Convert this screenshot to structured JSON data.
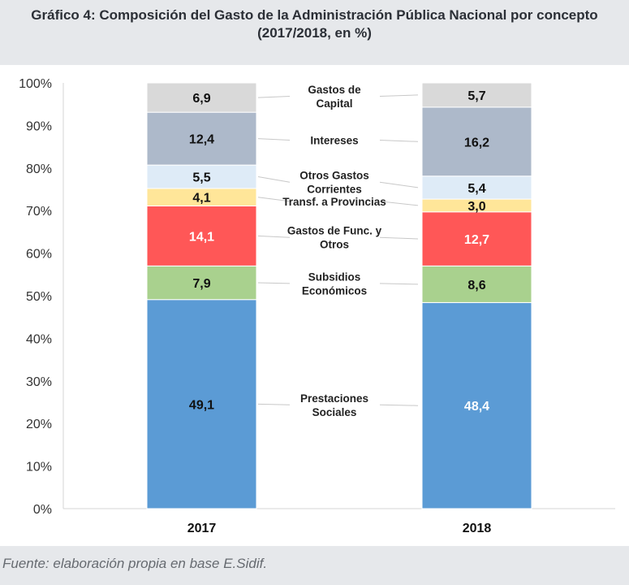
{
  "title_line1": "Gráfico 4: Composición del Gasto de la Administración Pública Nacional por concepto",
  "title_line2": "(2017/2018, en %)",
  "source": "Fuente: elaboración propia en base E.Sidif.",
  "chart_data": {
    "type": "bar",
    "stacked": true,
    "categories": [
      "2017",
      "2018"
    ],
    "y_tick_labels": [
      "0%",
      "10%",
      "20%",
      "30%",
      "40%",
      "50%",
      "60%",
      "70%",
      "80%",
      "90%",
      "100%"
    ],
    "ylim": [
      0,
      100
    ],
    "grid": false,
    "series": [
      {
        "name": "Prestaciones Sociales",
        "label_lines": [
          "Prestaciones",
          "Sociales"
        ],
        "values": [
          49.1,
          48.4
        ],
        "labels": [
          "49,1",
          "48,4"
        ],
        "color": "#5b9bd5",
        "text_colors": [
          "#111111",
          "#ffffff"
        ]
      },
      {
        "name": "Subsidios Económicos",
        "label_lines": [
          "Subsidios",
          "Económicos"
        ],
        "values": [
          7.9,
          8.6
        ],
        "labels": [
          "7,9",
          "8,6"
        ],
        "color": "#a9d18e",
        "text_colors": [
          "#111111",
          "#111111"
        ]
      },
      {
        "name": "Gastos de Func. y Otros",
        "label_lines": [
          "Gastos de Func. y",
          "Otros"
        ],
        "values": [
          14.1,
          12.7
        ],
        "labels": [
          "14,1",
          "12,7"
        ],
        "color": "#ff5757",
        "text_colors": [
          "#ffffff",
          "#ffffff"
        ]
      },
      {
        "name": "Transf. a Provincias",
        "label_lines": [
          "Transf. a Provincias"
        ],
        "values": [
          4.1,
          3.0
        ],
        "labels": [
          "4,1",
          "3,0"
        ],
        "color": "#ffe699",
        "text_colors": [
          "#111111",
          "#111111"
        ]
      },
      {
        "name": "Otros Gastos Corrientes",
        "label_lines": [
          "Otros Gastos",
          "Corrientes"
        ],
        "values": [
          5.5,
          5.4
        ],
        "labels": [
          "5,5",
          "5,4"
        ],
        "color": "#deebf7",
        "text_colors": [
          "#111111",
          "#111111"
        ]
      },
      {
        "name": "Intereses",
        "label_lines": [
          "Intereses"
        ],
        "values": [
          12.4,
          16.2
        ],
        "labels": [
          "12,4",
          "16,2"
        ],
        "color": "#adb9ca",
        "text_colors": [
          "#111111",
          "#111111"
        ]
      },
      {
        "name": "Gastos de Capital",
        "label_lines": [
          "Gastos de",
          "Capital"
        ],
        "values": [
          6.9,
          5.7
        ],
        "labels": [
          "6,9",
          "5,7"
        ],
        "color": "#d9d9d9",
        "text_colors": [
          "#111111",
          "#111111"
        ]
      }
    ]
  }
}
